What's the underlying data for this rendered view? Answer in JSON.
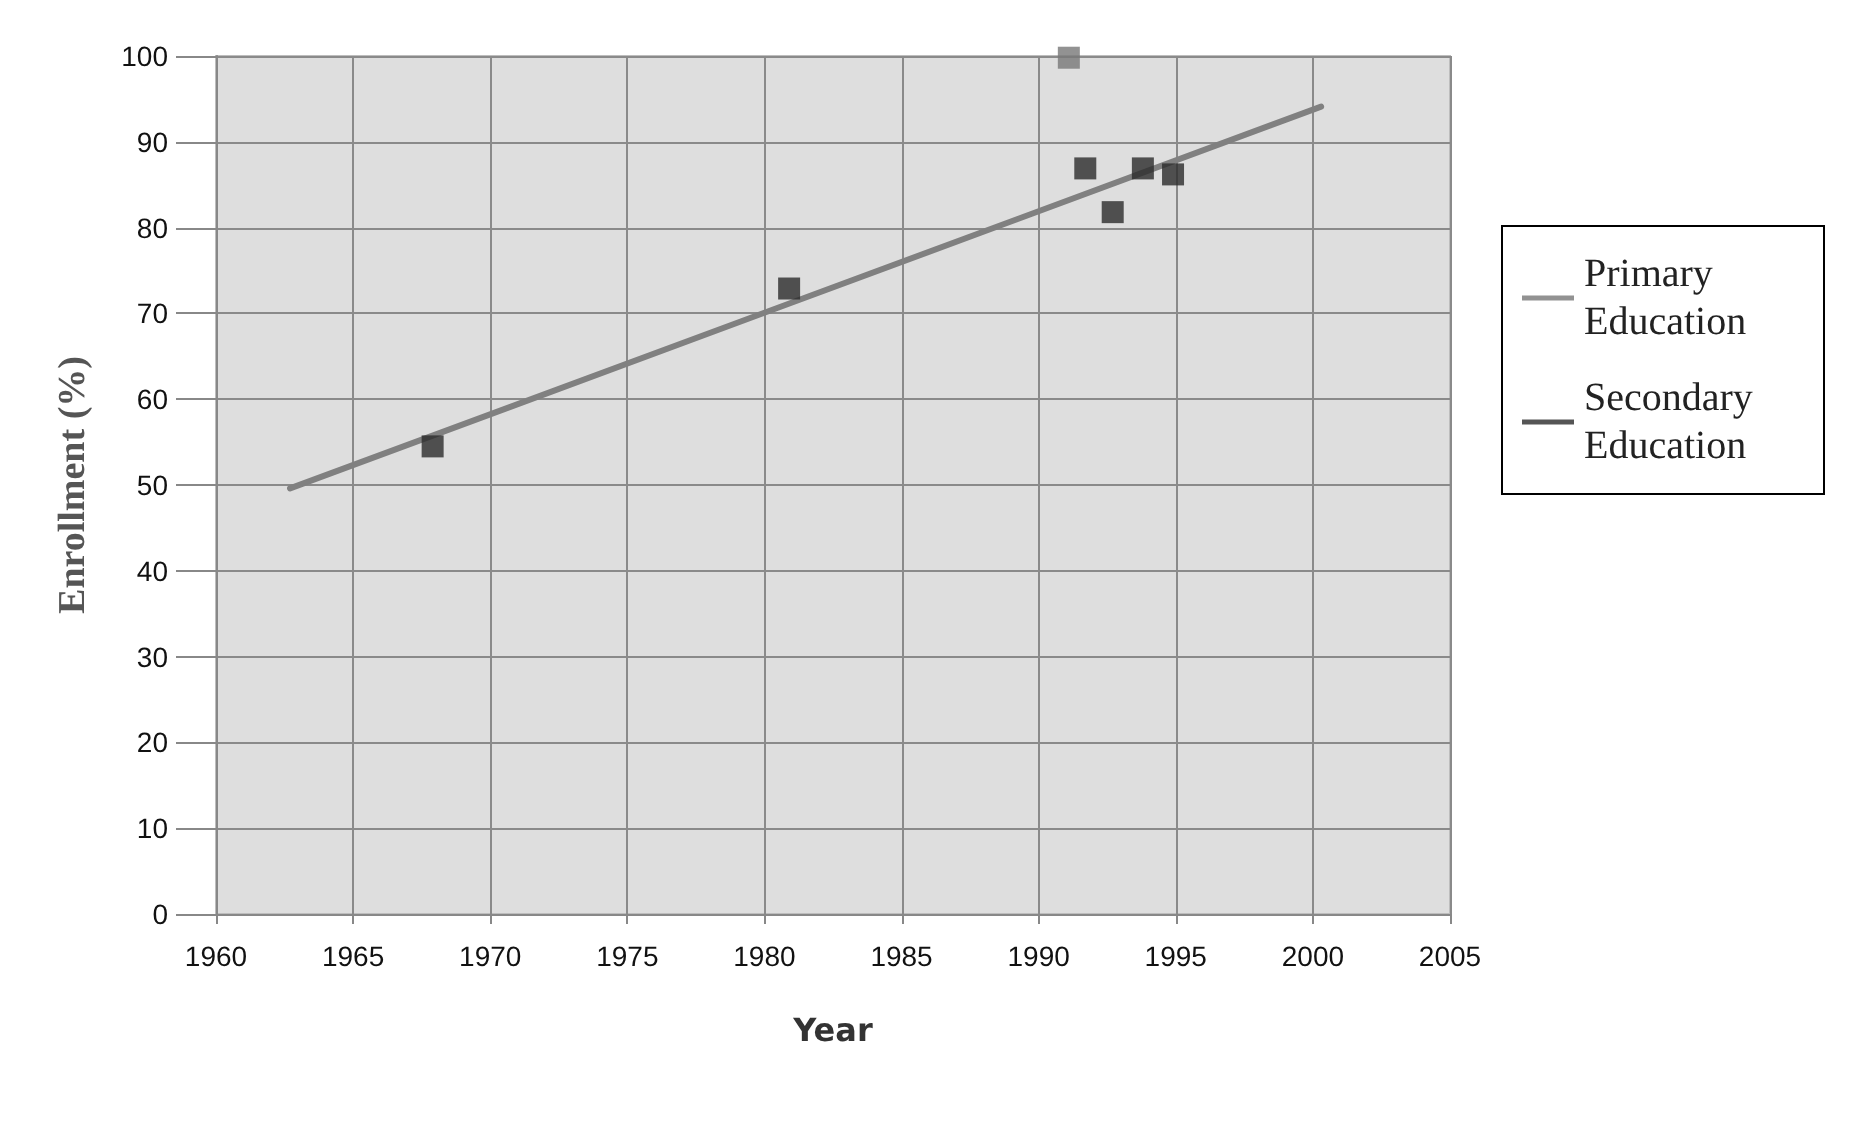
{
  "chart_data": {
    "type": "scatter",
    "xlabel": "Year",
    "ylabel": "Enrollment (%)",
    "xlim": [
      1960,
      2005
    ],
    "xticks": [
      1960,
      1965,
      1970,
      1975,
      1980,
      1985,
      1990,
      1995,
      2000,
      2005
    ],
    "ylim": [
      0,
      100
    ],
    "yticks": [
      0,
      10,
      20,
      30,
      40,
      50,
      60,
      70,
      80,
      90,
      100
    ],
    "grid": true,
    "legend": "right",
    "marker": "square",
    "series": [
      {
        "name": "Primary Education",
        "color": "#777777",
        "x": [
          1991.1
        ],
        "values": [
          99.8
        ]
      },
      {
        "name": "Secondary Education",
        "color": "#2a2a2a",
        "x": [
          1967.9,
          1980.9,
          1991.7,
          1992.7,
          1993.8,
          1994.9
        ],
        "values": [
          54.5,
          72.9,
          86.9,
          81.8,
          86.9,
          86.2
        ]
      },
      {
        "type": "line",
        "color": "#808080",
        "x": [
          1962.7,
          2000.3
        ],
        "values": [
          49.6,
          94.1
        ],
        "marker": "none"
      }
    ]
  }
}
